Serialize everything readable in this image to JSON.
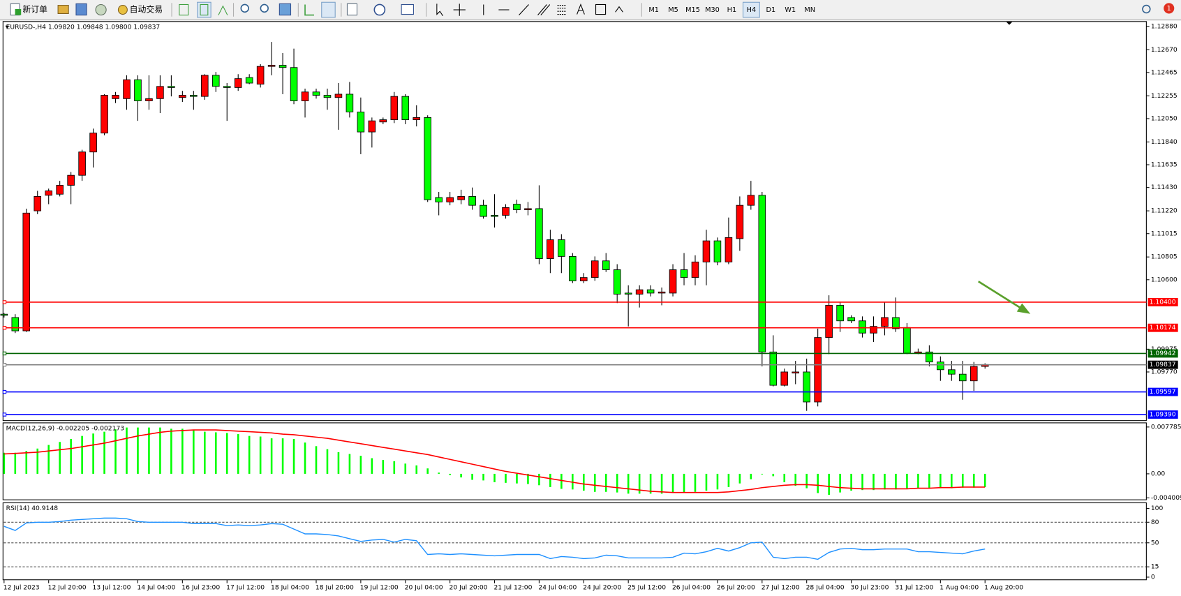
{
  "toolbar": {
    "new_order": "新订单",
    "auto_trading": "自动交易",
    "timeframes": [
      "M1",
      "M5",
      "M15",
      "M30",
      "H1",
      "H4",
      "D1",
      "W1",
      "MN"
    ],
    "active_timeframe": "H4",
    "notifications": "1"
  },
  "chart_data": [
    {
      "type": "candlestick",
      "title": "EURUSD-,H4  1.09820 1.09848 1.09800 1.09837",
      "categories": [
        "12 Jul 2023",
        null,
        null,
        null,
        "12 Jul 20:00",
        null,
        null,
        null,
        "13 Jul 12:00",
        null,
        null,
        null,
        "14 Jul 04:00",
        null,
        null,
        null,
        "16 Jul 23:00",
        null,
        null,
        null,
        "17 Jul 12:00",
        null,
        null,
        null,
        "18 Jul 04:00",
        null,
        null,
        null,
        "18 Jul 20:00",
        null,
        null,
        null,
        "19 Jul 12:00",
        null,
        null,
        null,
        "20 Jul 04:00",
        null,
        null,
        null,
        "20 Jul 20:00",
        null,
        null,
        null,
        "21 Jul 12:00",
        null,
        null,
        null,
        "24 Jul 04:00",
        null,
        null,
        null,
        "24 Jul 20:00",
        null,
        null,
        null,
        "25 Jul 12:00",
        null,
        null,
        null,
        "26 Jul 04:00",
        null,
        null,
        null,
        "26 Jul 20:00",
        null,
        null,
        null,
        "27 Jul 12:00",
        null,
        null,
        null,
        "28 Jul 04:00",
        null,
        null,
        null,
        "30 Jul 23:00",
        null,
        null,
        null,
        "31 Jul 12:00",
        null,
        null,
        null,
        "1 Aug 04:00",
        null,
        null,
        null,
        "1 Aug 20:00"
      ],
      "candles": [
        [
          1.1029,
          1.103,
          1.1026,
          1.1028
        ],
        [
          1.1026,
          1.1029,
          1.1012,
          1.1014
        ],
        [
          1.1014,
          1.1124,
          1.1013,
          1.112
        ],
        [
          1.1122,
          1.114,
          1.1119,
          1.1135
        ],
        [
          1.1136,
          1.1142,
          1.1128,
          1.114
        ],
        [
          1.1137,
          1.1149,
          1.1135,
          1.1145
        ],
        [
          1.1145,
          1.1157,
          1.1128,
          1.1154
        ],
        [
          1.1154,
          1.1177,
          1.1149,
          1.1175
        ],
        [
          1.1175,
          1.1196,
          1.1161,
          1.1192
        ],
        [
          1.1192,
          1.1227,
          1.119,
          1.1226
        ],
        [
          1.1223,
          1.1229,
          1.1219,
          1.1226
        ],
        [
          1.1223,
          1.1244,
          1.1213,
          1.124
        ],
        [
          1.124,
          1.1244,
          1.1203,
          1.1221
        ],
        [
          1.1221,
          1.1244,
          1.1213,
          1.1223
        ],
        [
          1.1223,
          1.1244,
          1.121,
          1.1234
        ],
        [
          1.1234,
          1.1244,
          1.1225,
          1.1233
        ],
        [
          1.1224,
          1.123,
          1.122,
          1.1226
        ],
        [
          1.1226,
          1.123,
          1.1213,
          1.1225
        ],
        [
          1.1225,
          1.1245,
          1.1222,
          1.1244
        ],
        [
          1.1244,
          1.1247,
          1.1229,
          1.1234
        ],
        [
          1.1234,
          1.1237,
          1.1203,
          1.1233
        ],
        [
          1.1233,
          1.1245,
          1.123,
          1.1241
        ],
        [
          1.1242,
          1.1245,
          1.1236,
          1.1237
        ],
        [
          1.1236,
          1.1254,
          1.1233,
          1.1252
        ],
        [
          1.1252,
          1.1274,
          1.1244,
          1.1253
        ],
        [
          1.1253,
          1.1264,
          1.1227,
          1.1251
        ],
        [
          1.1251,
          1.1268,
          1.1218,
          1.1221
        ],
        [
          1.1221,
          1.1232,
          1.1206,
          1.1229
        ],
        [
          1.1229,
          1.1232,
          1.1223,
          1.1226
        ],
        [
          1.1226,
          1.1232,
          1.1213,
          1.1224
        ],
        [
          1.1224,
          1.1237,
          1.1195,
          1.1227
        ],
        [
          1.1227,
          1.1238,
          1.1206,
          1.1211
        ],
        [
          1.1211,
          1.1224,
          1.1173,
          1.1193
        ],
        [
          1.1193,
          1.1206,
          1.1179,
          1.1203
        ],
        [
          1.1202,
          1.1206,
          1.12,
          1.1204
        ],
        [
          1.1204,
          1.1229,
          1.1201,
          1.1225
        ],
        [
          1.1225,
          1.1227,
          1.12,
          1.1204
        ],
        [
          1.1204,
          1.1217,
          1.1198,
          1.1206
        ],
        [
          1.1206,
          1.1208,
          1.113,
          1.1132
        ],
        [
          1.1134,
          1.1139,
          1.1118,
          1.113
        ],
        [
          1.113,
          1.1139,
          1.1127,
          1.1134
        ],
        [
          1.1132,
          1.1141,
          1.1128,
          1.1135
        ],
        [
          1.1135,
          1.1143,
          1.1123,
          1.1127
        ],
        [
          1.1127,
          1.1132,
          1.1115,
          1.1117
        ],
        [
          1.1118,
          1.1137,
          1.1107,
          1.1117
        ],
        [
          1.1118,
          1.1128,
          1.1115,
          1.1125
        ],
        [
          1.1128,
          1.1132,
          1.112,
          1.1123
        ],
        [
          1.1123,
          1.113,
          1.1118,
          1.1124
        ],
        [
          1.1124,
          1.1145,
          1.1074,
          1.1079
        ],
        [
          1.1079,
          1.1105,
          1.1066,
          1.1096
        ],
        [
          1.1096,
          1.1101,
          1.1066,
          1.1081
        ],
        [
          1.1081,
          1.1084,
          1.1057,
          1.1059
        ],
        [
          1.1059,
          1.1066,
          1.1057,
          1.1062
        ],
        [
          1.1062,
          1.1081,
          1.1059,
          1.1077
        ],
        [
          1.1077,
          1.1084,
          1.1067,
          1.1069
        ],
        [
          1.1069,
          1.1074,
          1.1039,
          1.1047
        ],
        [
          1.1048,
          1.1055,
          1.1018,
          1.1047
        ],
        [
          1.1047,
          1.1055,
          1.1035,
          1.1051
        ],
        [
          1.1051,
          1.1055,
          1.1045,
          1.1048
        ],
        [
          1.1048,
          1.1053,
          1.1037,
          1.1049
        ],
        [
          1.1048,
          1.1074,
          1.1045,
          1.1069
        ],
        [
          1.1069,
          1.1084,
          1.1055,
          1.1062
        ],
        [
          1.1062,
          1.1082,
          1.1055,
          1.1076
        ],
        [
          1.1076,
          1.1105,
          1.1055,
          1.1095
        ],
        [
          1.1095,
          1.1098,
          1.1073,
          1.1076
        ],
        [
          1.1076,
          1.1116,
          1.1074,
          1.1098
        ],
        [
          1.1097,
          1.1135,
          1.1086,
          1.1127
        ],
        [
          1.1127,
          1.1149,
          1.1123,
          1.1136
        ],
        [
          1.1136,
          1.1139,
          1.0982,
          1.0995
        ],
        [
          1.0995,
          1.101,
          1.0964,
          1.0965
        ],
        [
          1.0965,
          1.098,
          1.0964,
          1.0977
        ],
        [
          1.0976,
          1.0987,
          1.0966,
          1.0977
        ],
        [
          1.0977,
          1.0989,
          1.0942,
          1.095
        ],
        [
          1.095,
          1.1016,
          1.0946,
          1.1008
        ],
        [
          1.1008,
          1.1046,
          1.0993,
          1.1037
        ],
        [
          1.1037,
          1.104,
          1.1013,
          1.1023
        ],
        [
          1.1026,
          1.1028,
          1.1021,
          1.1023
        ],
        [
          1.1023,
          1.1027,
          1.1008,
          1.1012
        ],
        [
          1.1012,
          1.1027,
          1.1004,
          1.1018
        ],
        [
          1.1018,
          1.104,
          1.101,
          1.1026
        ],
        [
          1.1026,
          1.1044,
          1.1013,
          1.1016
        ],
        [
          1.1017,
          1.1021,
          1.0993,
          1.0994
        ],
        [
          1.0994,
          1.0998,
          1.0993,
          1.0995
        ],
        [
          1.0995,
          1.1001,
          1.0982,
          1.0986
        ],
        [
          1.0986,
          1.0991,
          1.0969,
          1.0979
        ],
        [
          1.0979,
          1.0987,
          1.0969,
          1.0975
        ],
        [
          1.0975,
          1.0987,
          1.0952,
          1.0969
        ],
        [
          1.0969,
          1.0986,
          1.096,
          1.0982
        ],
        [
          1.0982,
          1.09848,
          1.098,
          1.09837
        ]
      ],
      "up_color": "#ff0000",
      "down_color": "#00ff00",
      "ylim": [
        1.0939,
        1.1288
      ],
      "yticks": [
        {
          "value": 1.1288,
          "label": "1.12880"
        },
        {
          "value": 1.1267,
          "label": "1.12670"
        },
        {
          "value": 1.12465,
          "label": "1.12465"
        },
        {
          "value": 1.12255,
          "label": "1.12255"
        },
        {
          "value": 1.1205,
          "label": "1.12050"
        },
        {
          "value": 1.1184,
          "label": "1.11840"
        },
        {
          "value": 1.11635,
          "label": "1.11635"
        },
        {
          "value": 1.1143,
          "label": "1.11430"
        },
        {
          "value": 1.1122,
          "label": "1.11220"
        },
        {
          "value": 1.11015,
          "label": "1.11015"
        },
        {
          "value": 1.10805,
          "label": "1.10805"
        },
        {
          "value": 1.106,
          "label": "1.10600"
        },
        {
          "value": 1.09975,
          "label": "1.09975"
        },
        {
          "value": 1.0977,
          "label": "1.09770"
        }
      ],
      "levels": [
        {
          "value": 1.104,
          "label": "1.10400",
          "color": "#ff0000"
        },
        {
          "value": 1.10174,
          "label": "1.10174",
          "color": "#ff0000"
        },
        {
          "value": 1.09942,
          "label": "1.09942",
          "color": "#006400"
        },
        {
          "value": 1.09837,
          "label": "1.09837",
          "color": "#000000"
        },
        {
          "value": 1.09597,
          "label": "1.09597",
          "color": "#0000ff"
        },
        {
          "value": 1.0939,
          "label": "1.09390",
          "color": "#0000ff"
        }
      ]
    },
    {
      "type": "macd",
      "title": "MACD(12,26,9) -0.002205 -0.002173",
      "histogram": {
        "color": "#00ff00",
        "values": [
          0.0035,
          0.0035,
          0.0038,
          0.0042,
          0.0048,
          0.0053,
          0.0058,
          0.0063,
          0.0067,
          0.007,
          0.0074,
          0.0077,
          0.0077,
          0.0077,
          0.0077,
          0.0075,
          0.0075,
          0.0073,
          0.007,
          0.0069,
          0.0068,
          0.0066,
          0.0063,
          0.0062,
          0.0059,
          0.0059,
          0.0058,
          0.0052,
          0.0046,
          0.0041,
          0.0036,
          0.0033,
          0.003,
          0.0026,
          0.0023,
          0.0021,
          0.0017,
          0.0014,
          0.0009,
          0.0002,
          -0.0002,
          -0.0006,
          -0.001,
          -0.0011,
          -0.0014,
          -0.0015,
          -0.0016,
          -0.0017,
          -0.0019,
          -0.0022,
          -0.0025,
          -0.0026,
          -0.0028,
          -0.003,
          -0.003,
          -0.0031,
          -0.0033,
          -0.0033,
          -0.0033,
          -0.0033,
          -0.0032,
          -0.0031,
          -0.003,
          -0.0028,
          -0.0026,
          -0.0022,
          -0.0016,
          -0.0009,
          -0.0001,
          -0.0004,
          -0.0014,
          -0.002,
          -0.0024,
          -0.0032,
          -0.0035,
          -0.0031,
          -0.0028,
          -0.0027,
          -0.0027,
          -0.0026,
          -0.0026,
          -0.0024,
          -0.0024,
          -0.0024,
          -0.0024,
          -0.0024,
          -0.0023,
          -0.0023,
          -0.0022
        ]
      },
      "signal": {
        "color": "#ff0000",
        "values": [
          0.0033,
          0.0034,
          0.0035,
          0.0036,
          0.0038,
          0.004,
          0.0042,
          0.0045,
          0.0048,
          0.0051,
          0.0055,
          0.0059,
          0.0063,
          0.0066,
          0.0069,
          0.0071,
          0.0072,
          0.0073,
          0.0073,
          0.0073,
          0.0072,
          0.0071,
          0.007,
          0.0069,
          0.0068,
          0.0066,
          0.0065,
          0.0063,
          0.0061,
          0.0059,
          0.0056,
          0.0053,
          0.005,
          0.0047,
          0.0044,
          0.0041,
          0.0038,
          0.0035,
          0.0032,
          0.0028,
          0.0024,
          0.002,
          0.0016,
          0.0012,
          0.0008,
          0.0004,
          0.0001,
          -0.0002,
          -0.0005,
          -0.0008,
          -0.0011,
          -0.0014,
          -0.0017,
          -0.0019,
          -0.0021,
          -0.0023,
          -0.0025,
          -0.0027,
          -0.0029,
          -0.003,
          -0.0031,
          -0.0031,
          -0.0031,
          -0.0031,
          -0.0031,
          -0.003,
          -0.0028,
          -0.0026,
          -0.0023,
          -0.0021,
          -0.0019,
          -0.0018,
          -0.0018,
          -0.0019,
          -0.0021,
          -0.0023,
          -0.0024,
          -0.0025,
          -0.0025,
          -0.0025,
          -0.0025,
          -0.0025,
          -0.0024,
          -0.0024,
          -0.0023,
          -0.0023,
          -0.0022,
          -0.0022,
          -0.0022
        ]
      },
      "ylim": [
        -0.004009,
        0.007785
      ],
      "yticks": [
        0.007785,
        {
          "value": 0,
          "label": "0.00"
        },
        -0.004009
      ]
    },
    {
      "type": "line",
      "title": "RSI(14) 40.9148",
      "series": [
        {
          "color": "#1e90ff",
          "values": [
            74,
            68,
            79,
            80,
            80,
            81,
            83,
            84,
            85,
            86,
            86,
            85,
            81,
            80,
            80,
            80,
            80,
            78,
            78,
            78,
            75,
            76,
            75,
            76,
            78,
            77,
            70,
            63,
            63,
            62,
            60,
            56,
            52,
            54,
            55,
            51,
            55,
            53,
            33,
            34,
            33,
            34,
            33,
            32,
            31,
            32,
            33,
            33,
            33,
            27,
            30,
            29,
            27,
            28,
            32,
            31,
            28,
            28,
            28,
            28,
            29,
            35,
            34,
            37,
            42,
            38,
            43,
            50,
            51,
            29,
            27,
            29,
            29,
            26,
            36,
            41,
            42,
            40,
            40,
            41,
            41,
            41,
            37,
            37,
            36,
            35,
            34,
            38,
            41
          ]
        }
      ],
      "ylim": [
        0,
        100
      ],
      "yticks": [
        100,
        80,
        50,
        15,
        0
      ],
      "levels": [
        80,
        50,
        15
      ]
    }
  ]
}
